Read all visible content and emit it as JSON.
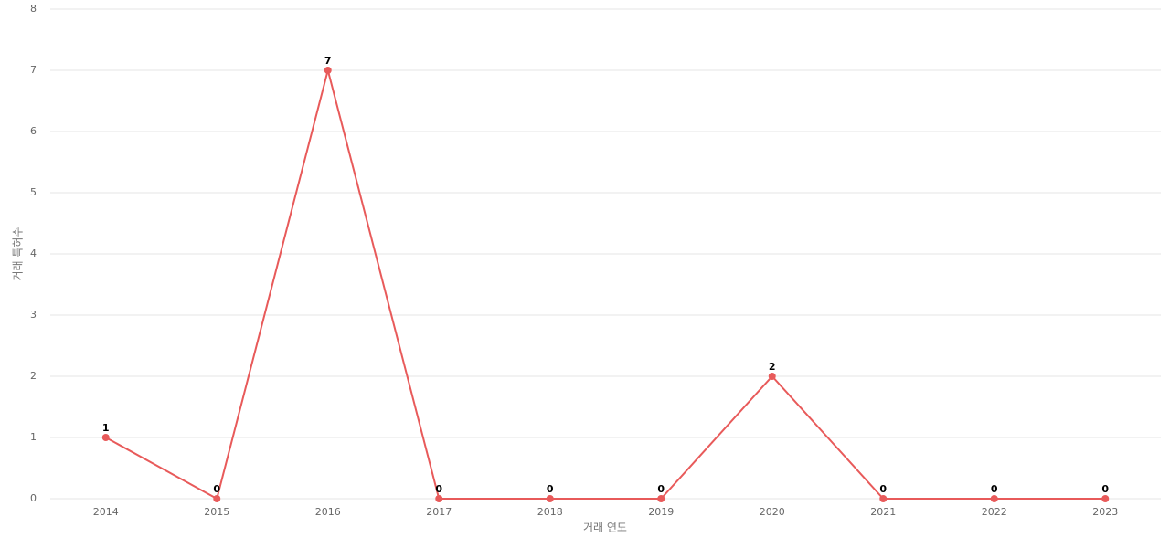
{
  "chart_data": {
    "type": "line",
    "x_label": "거래 연도",
    "y_label": "거래 특허수",
    "categories": [
      "2014",
      "2015",
      "2016",
      "2017",
      "2018",
      "2019",
      "2020",
      "2021",
      "2022",
      "2023"
    ],
    "values": [
      1,
      0,
      7,
      0,
      0,
      0,
      2,
      0,
      0,
      0
    ],
    "color": "#e85a5a",
    "ylim": [
      0,
      8
    ],
    "yticks": [
      0,
      1,
      2,
      3,
      4,
      5,
      6,
      7,
      8
    ],
    "grid": true
  }
}
